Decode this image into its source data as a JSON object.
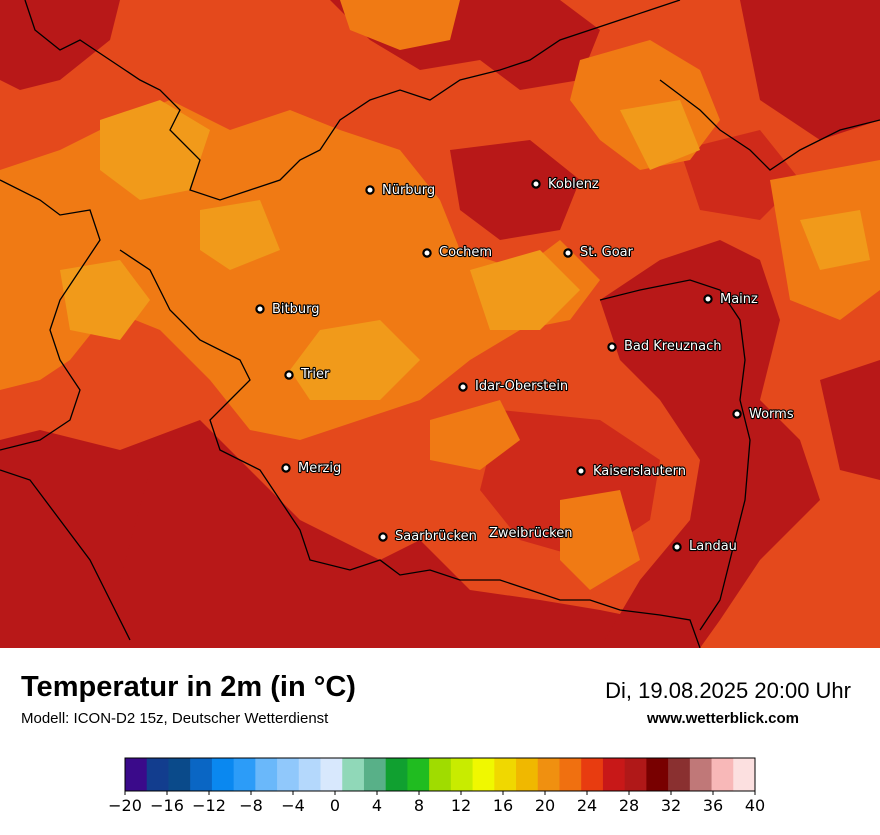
{
  "map": {
    "cities": [
      {
        "name": "Nürburg"
      },
      {
        "name": "Koblenz"
      },
      {
        "name": "Cochem"
      },
      {
        "name": "St. Goar"
      },
      {
        "name": "Mainz"
      },
      {
        "name": "Bitburg"
      },
      {
        "name": "Bad Kreuznach"
      },
      {
        "name": "Trier"
      },
      {
        "name": "Idar-Oberstein"
      },
      {
        "name": "Worms"
      },
      {
        "name": "Merzig"
      },
      {
        "name": "Kaiserslautern"
      },
      {
        "name": "Saarbrücken"
      },
      {
        "name": "Zweibrücken"
      },
      {
        "name": "Landau"
      }
    ],
    "colors": {
      "orange_light": "#f19a1a",
      "orange": "#f07a14",
      "red_orange": "#e4491c",
      "red": "#cf2a1a",
      "dark_red": "#b81818",
      "border": "#000000"
    }
  },
  "footer": {
    "title": "Temperatur in 2m (in °C)",
    "model": "Modell: ICON-D2 15z, Deutscher Wetterdienst",
    "datetime": "Di, 19.08.2025 20:00 Uhr",
    "website": "www.wetterblick.com"
  },
  "colorbar": {
    "tick_labels": [
      "−20",
      "−16",
      "−12",
      "−8",
      "−4",
      "0",
      "4",
      "8",
      "12",
      "16",
      "20",
      "24",
      "28",
      "32",
      "36",
      "40"
    ],
    "colors": [
      "#3a0a8a",
      "#123d8e",
      "#0a4a8a",
      "#0a66c4",
      "#0a88f0",
      "#2c9cf8",
      "#6ab8fa",
      "#90c8fb",
      "#b4d8fc",
      "#d8e8fd",
      "#90d8b8",
      "#58b088",
      "#10a030",
      "#20bc20",
      "#a0dc00",
      "#c8ec00",
      "#f0f800",
      "#f0d800",
      "#f0b800",
      "#f09010",
      "#f07010",
      "#e83c10",
      "#c81818",
      "#b01818",
      "#780000",
      "#8a3030",
      "#c07878",
      "#f8b8b8",
      "#fce0e0"
    ]
  }
}
